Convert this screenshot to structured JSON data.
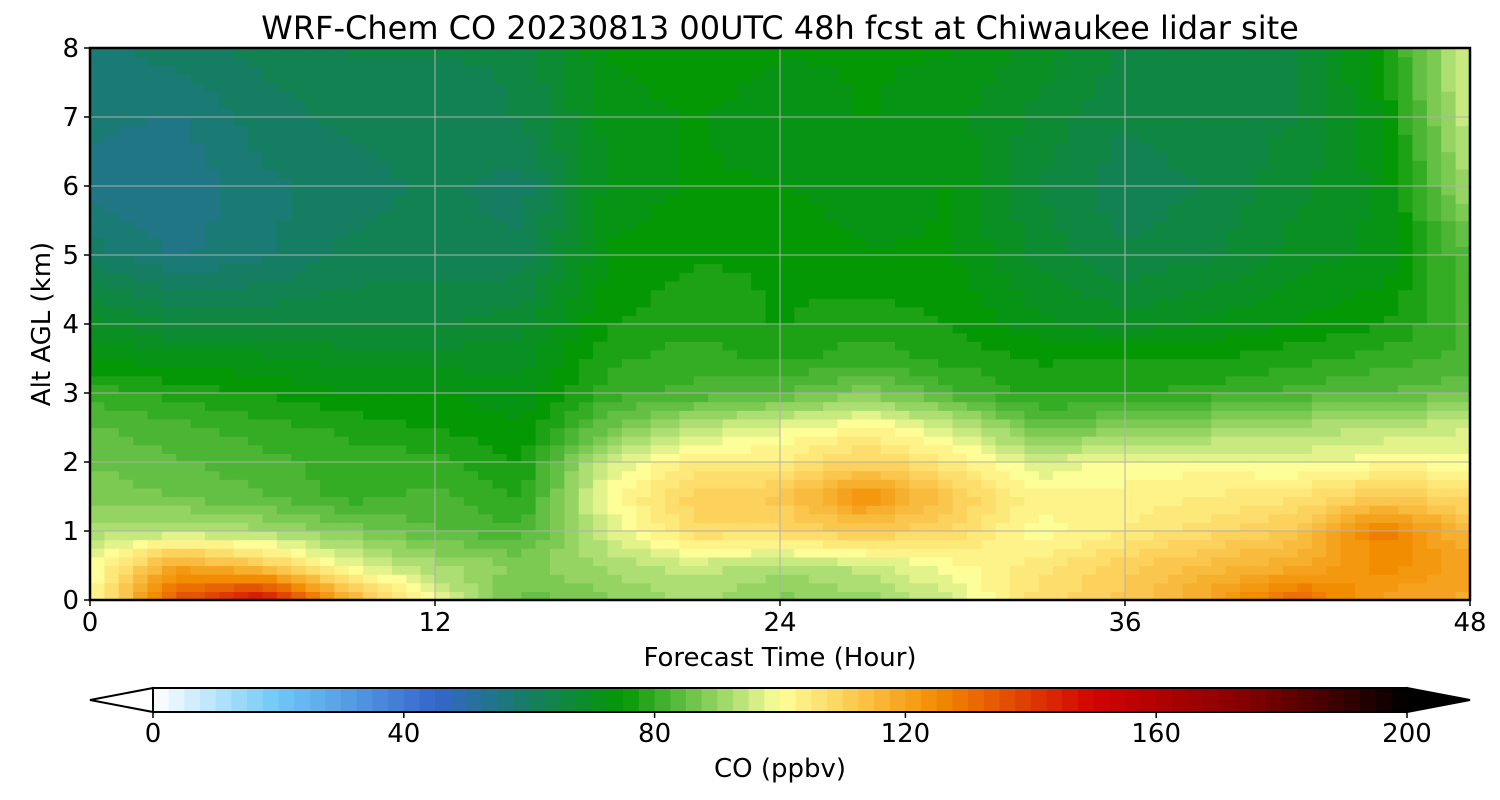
{
  "chart_data": {
    "type": "heatmap",
    "title": "WRF-Chem CO  20230813 00UTC 48h fcst at Chiwaukee lidar site",
    "xlabel": "Forecast Time (Hour)",
    "ylabel": "Alt AGL (km)",
    "xlim": [
      0,
      48
    ],
    "ylim": [
      0,
      8
    ],
    "xticks": [
      0,
      12,
      24,
      36,
      48
    ],
    "yticks": [
      0,
      1,
      2,
      3,
      4,
      5,
      6,
      7,
      8
    ],
    "grid": true,
    "x_hours": [
      0,
      3,
      6,
      9,
      12,
      15,
      18,
      21,
      24,
      27,
      30,
      33,
      36,
      39,
      42,
      45,
      48
    ],
    "y_km": [
      0,
      0.5,
      1,
      1.5,
      2,
      2.5,
      3,
      3.5,
      4,
      5,
      6,
      7,
      8
    ],
    "values_ppbv": [
      [
        100,
        135,
        150,
        118,
        98,
        85,
        88,
        92,
        88,
        90,
        96,
        108,
        112,
        120,
        132,
        120,
        118
      ],
      [
        98,
        120,
        112,
        98,
        92,
        88,
        92,
        95,
        92,
        95,
        100,
        105,
        110,
        115,
        118,
        125,
        120
      ],
      [
        92,
        94,
        92,
        88,
        84,
        82,
        96,
        108,
        108,
        112,
        108,
        100,
        104,
        108,
        112,
        128,
        115
      ],
      [
        88,
        86,
        84,
        80,
        82,
        78,
        100,
        110,
        112,
        124,
        112,
        102,
        102,
        104,
        106,
        112,
        108
      ],
      [
        86,
        84,
        82,
        80,
        80,
        76,
        96,
        104,
        104,
        110,
        104,
        96,
        100,
        100,
        98,
        100,
        100
      ],
      [
        84,
        82,
        80,
        78,
        76,
        74,
        86,
        94,
        98,
        102,
        96,
        86,
        88,
        90,
        92,
        94,
        96
      ],
      [
        80,
        78,
        76,
        74,
        74,
        72,
        80,
        82,
        84,
        88,
        82,
        78,
        78,
        80,
        82,
        84,
        86
      ],
      [
        74,
        72,
        72,
        70,
        70,
        70,
        78,
        80,
        78,
        80,
        78,
        76,
        76,
        76,
        78,
        80,
        82
      ],
      [
        70,
        66,
        66,
        66,
        66,
        68,
        76,
        78,
        76,
        78,
        76,
        72,
        70,
        72,
        74,
        76,
        82
      ],
      [
        60,
        56,
        58,
        62,
        62,
        62,
        74,
        76,
        76,
        74,
        74,
        68,
        64,
        66,
        70,
        72,
        84
      ],
      [
        55,
        54,
        58,
        60,
        62,
        60,
        72,
        74,
        74,
        72,
        74,
        66,
        62,
        64,
        68,
        72,
        92
      ],
      [
        57,
        56,
        60,
        62,
        62,
        64,
        72,
        74,
        72,
        74,
        72,
        68,
        64,
        66,
        66,
        74,
        96
      ],
      [
        58,
        60,
        62,
        64,
        64,
        64,
        74,
        76,
        74,
        74,
        74,
        70,
        66,
        64,
        66,
        76,
        98
      ]
    ],
    "colorbar": {
      "label": "CO  (ppbv)",
      "min": 0,
      "max": 200,
      "ticks": [
        0,
        40,
        80,
        120,
        160,
        200
      ],
      "extend": "both",
      "colormap_stops": [
        {
          "v": 0,
          "c": "#ffffff"
        },
        {
          "v": 20,
          "c": "#6ec8f6"
        },
        {
          "v": 45,
          "c": "#3566cc"
        },
        {
          "v": 60,
          "c": "#157e62"
        },
        {
          "v": 75,
          "c": "#049804"
        },
        {
          "v": 92,
          "c": "#a8dc70"
        },
        {
          "v": 100,
          "c": "#fefe98"
        },
        {
          "v": 110,
          "c": "#fcd25c"
        },
        {
          "v": 125,
          "c": "#f28c00"
        },
        {
          "v": 150,
          "c": "#d20202"
        },
        {
          "v": 175,
          "c": "#820000"
        },
        {
          "v": 200,
          "c": "#000000"
        }
      ]
    }
  }
}
